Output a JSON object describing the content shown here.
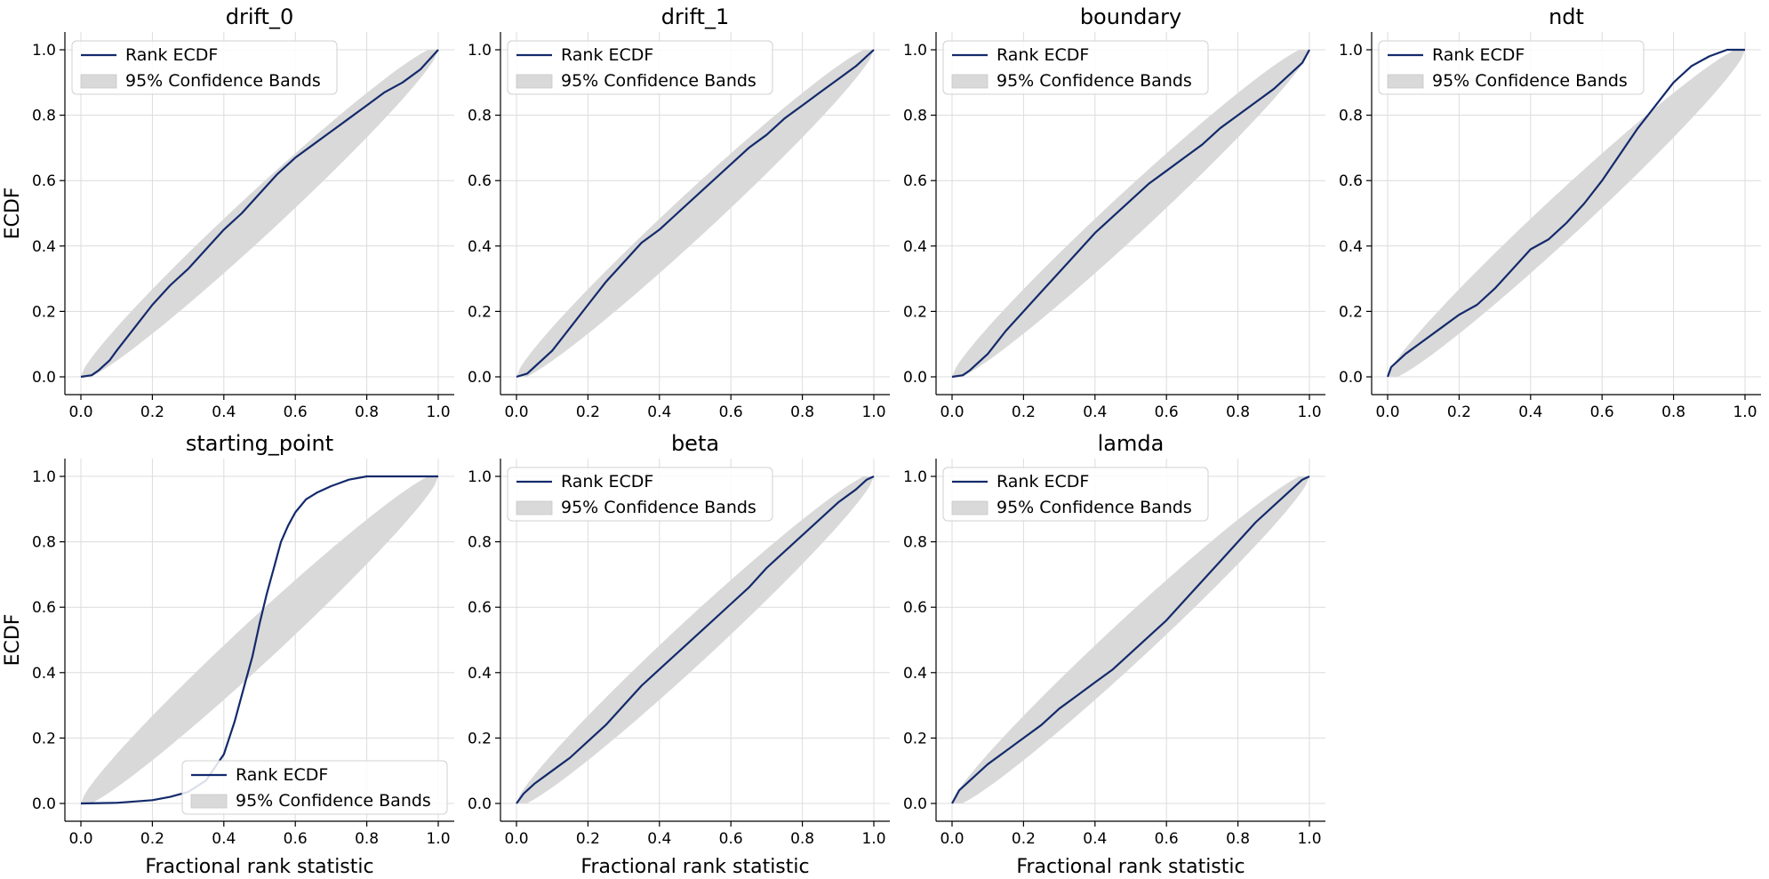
{
  "figure": {
    "ecdf_color": "#132a6b",
    "band_color": "#d9d9d9",
    "grid_color": "#dcdcdc"
  },
  "chart_data": [
    {
      "type": "line",
      "title": "drift_0",
      "xlabel": "",
      "ylabel": "ECDF",
      "xlim": [
        0,
        1
      ],
      "ylim": [
        0,
        1
      ],
      "xticks": [
        0.0,
        0.2,
        0.4,
        0.6,
        0.8,
        1.0
      ],
      "yticks": [
        0.0,
        0.2,
        0.4,
        0.6,
        0.8,
        1.0
      ],
      "grid": true,
      "legend_position": "top-left",
      "legend": [
        "Rank ECDF",
        "95% Confidence Bands"
      ],
      "series": [
        {
          "name": "Rank ECDF",
          "x": [
            0,
            0.03,
            0.05,
            0.08,
            0.1,
            0.15,
            0.2,
            0.25,
            0.3,
            0.35,
            0.4,
            0.45,
            0.5,
            0.55,
            0.6,
            0.65,
            0.7,
            0.75,
            0.8,
            0.85,
            0.9,
            0.95,
            1.0
          ],
          "y": [
            0,
            0.005,
            0.02,
            0.05,
            0.08,
            0.15,
            0.22,
            0.28,
            0.33,
            0.39,
            0.45,
            0.5,
            0.56,
            0.62,
            0.67,
            0.71,
            0.75,
            0.79,
            0.83,
            0.87,
            0.9,
            0.94,
            1.0
          ]
        }
      ]
    },
    {
      "type": "line",
      "title": "drift_1",
      "xlabel": "",
      "ylabel": "",
      "xlim": [
        0,
        1
      ],
      "ylim": [
        0,
        1
      ],
      "xticks": [
        0.0,
        0.2,
        0.4,
        0.6,
        0.8,
        1.0
      ],
      "yticks": [
        0.0,
        0.2,
        0.4,
        0.6,
        0.8,
        1.0
      ],
      "grid": true,
      "legend_position": "top-left",
      "legend": [
        "Rank ECDF",
        "95% Confidence Bands"
      ],
      "series": [
        {
          "name": "Rank ECDF",
          "x": [
            0,
            0.03,
            0.05,
            0.1,
            0.15,
            0.2,
            0.25,
            0.3,
            0.35,
            0.4,
            0.45,
            0.5,
            0.55,
            0.6,
            0.65,
            0.7,
            0.75,
            0.8,
            0.85,
            0.9,
            0.95,
            1.0
          ],
          "y": [
            0,
            0.01,
            0.03,
            0.08,
            0.15,
            0.22,
            0.29,
            0.35,
            0.41,
            0.45,
            0.5,
            0.55,
            0.6,
            0.65,
            0.7,
            0.74,
            0.79,
            0.83,
            0.87,
            0.91,
            0.95,
            1.0
          ]
        }
      ]
    },
    {
      "type": "line",
      "title": "boundary",
      "xlabel": "",
      "ylabel": "",
      "xlim": [
        0,
        1
      ],
      "ylim": [
        0,
        1
      ],
      "xticks": [
        0.0,
        0.2,
        0.4,
        0.6,
        0.8,
        1.0
      ],
      "yticks": [
        0.0,
        0.2,
        0.4,
        0.6,
        0.8,
        1.0
      ],
      "grid": true,
      "legend_position": "top-left",
      "legend": [
        "Rank ECDF",
        "95% Confidence Bands"
      ],
      "series": [
        {
          "name": "Rank ECDF",
          "x": [
            0,
            0.03,
            0.05,
            0.1,
            0.15,
            0.2,
            0.25,
            0.3,
            0.35,
            0.4,
            0.45,
            0.5,
            0.55,
            0.6,
            0.65,
            0.7,
            0.75,
            0.8,
            0.85,
            0.9,
            0.95,
            0.98,
            1.0
          ],
          "y": [
            0,
            0.005,
            0.02,
            0.07,
            0.14,
            0.2,
            0.26,
            0.32,
            0.38,
            0.44,
            0.49,
            0.54,
            0.59,
            0.63,
            0.67,
            0.71,
            0.76,
            0.8,
            0.84,
            0.88,
            0.93,
            0.96,
            1.0
          ]
        }
      ]
    },
    {
      "type": "line",
      "title": "ndt",
      "xlabel": "",
      "ylabel": "",
      "xlim": [
        0,
        1
      ],
      "ylim": [
        0,
        1
      ],
      "xticks": [
        0.0,
        0.2,
        0.4,
        0.6,
        0.8,
        1.0
      ],
      "yticks": [
        0.0,
        0.2,
        0.4,
        0.6,
        0.8,
        1.0
      ],
      "grid": true,
      "legend_position": "top-left",
      "legend": [
        "Rank ECDF",
        "95% Confidence Bands"
      ],
      "series": [
        {
          "name": "Rank ECDF",
          "x": [
            0,
            0.01,
            0.03,
            0.05,
            0.1,
            0.15,
            0.2,
            0.25,
            0.3,
            0.35,
            0.4,
            0.45,
            0.5,
            0.55,
            0.6,
            0.65,
            0.7,
            0.75,
            0.8,
            0.85,
            0.9,
            0.95,
            1.0
          ],
          "y": [
            0,
            0.03,
            0.05,
            0.07,
            0.11,
            0.15,
            0.19,
            0.22,
            0.27,
            0.33,
            0.39,
            0.42,
            0.47,
            0.53,
            0.6,
            0.68,
            0.76,
            0.83,
            0.9,
            0.95,
            0.98,
            1.0,
            1.0
          ]
        }
      ]
    },
    {
      "type": "line",
      "title": "starting_point",
      "xlabel": "Fractional rank statistic",
      "ylabel": "ECDF",
      "xlim": [
        0,
        1
      ],
      "ylim": [
        0,
        1
      ],
      "xticks": [
        0.0,
        0.2,
        0.4,
        0.6,
        0.8,
        1.0
      ],
      "yticks": [
        0.0,
        0.2,
        0.4,
        0.6,
        0.8,
        1.0
      ],
      "grid": true,
      "legend_position": "bottom-right",
      "legend": [
        "Rank ECDF",
        "95% Confidence Bands"
      ],
      "series": [
        {
          "name": "Rank ECDF",
          "x": [
            0,
            0.1,
            0.2,
            0.25,
            0.3,
            0.35,
            0.4,
            0.43,
            0.46,
            0.48,
            0.5,
            0.52,
            0.54,
            0.56,
            0.58,
            0.6,
            0.63,
            0.66,
            0.7,
            0.75,
            0.8,
            0.9,
            1.0
          ],
          "y": [
            0,
            0.002,
            0.01,
            0.02,
            0.035,
            0.07,
            0.15,
            0.25,
            0.37,
            0.45,
            0.55,
            0.64,
            0.72,
            0.8,
            0.85,
            0.89,
            0.93,
            0.95,
            0.97,
            0.99,
            1.0,
            1.0,
            1.0
          ]
        }
      ]
    },
    {
      "type": "line",
      "title": "beta",
      "xlabel": "Fractional rank statistic",
      "ylabel": "",
      "xlim": [
        0,
        1
      ],
      "ylim": [
        0,
        1
      ],
      "xticks": [
        0.0,
        0.2,
        0.4,
        0.6,
        0.8,
        1.0
      ],
      "yticks": [
        0.0,
        0.2,
        0.4,
        0.6,
        0.8,
        1.0
      ],
      "grid": true,
      "legend_position": "top-left",
      "legend": [
        "Rank ECDF",
        "95% Confidence Bands"
      ],
      "series": [
        {
          "name": "Rank ECDF",
          "x": [
            0,
            0.02,
            0.05,
            0.1,
            0.15,
            0.2,
            0.25,
            0.3,
            0.35,
            0.4,
            0.45,
            0.5,
            0.55,
            0.6,
            0.65,
            0.7,
            0.75,
            0.8,
            0.85,
            0.9,
            0.95,
            0.98,
            1.0
          ],
          "y": [
            0,
            0.03,
            0.06,
            0.1,
            0.14,
            0.19,
            0.24,
            0.3,
            0.36,
            0.41,
            0.46,
            0.51,
            0.56,
            0.61,
            0.66,
            0.72,
            0.77,
            0.82,
            0.87,
            0.92,
            0.96,
            0.99,
            1.0
          ]
        }
      ]
    },
    {
      "type": "line",
      "title": "lamda",
      "xlabel": "Fractional rank statistic",
      "ylabel": "",
      "xlim": [
        0,
        1
      ],
      "ylim": [
        0,
        1
      ],
      "xticks": [
        0.0,
        0.2,
        0.4,
        0.6,
        0.8,
        1.0
      ],
      "yticks": [
        0.0,
        0.2,
        0.4,
        0.6,
        0.8,
        1.0
      ],
      "grid": true,
      "legend_position": "top-left",
      "legend": [
        "Rank ECDF",
        "95% Confidence Bands"
      ],
      "series": [
        {
          "name": "Rank ECDF",
          "x": [
            0,
            0.02,
            0.05,
            0.1,
            0.15,
            0.2,
            0.25,
            0.3,
            0.35,
            0.4,
            0.45,
            0.5,
            0.55,
            0.6,
            0.65,
            0.7,
            0.75,
            0.8,
            0.85,
            0.9,
            0.95,
            0.98,
            1.0
          ],
          "y": [
            0,
            0.04,
            0.07,
            0.12,
            0.16,
            0.2,
            0.24,
            0.29,
            0.33,
            0.37,
            0.41,
            0.46,
            0.51,
            0.56,
            0.62,
            0.68,
            0.74,
            0.8,
            0.86,
            0.91,
            0.96,
            0.99,
            1.0
          ]
        }
      ]
    }
  ]
}
